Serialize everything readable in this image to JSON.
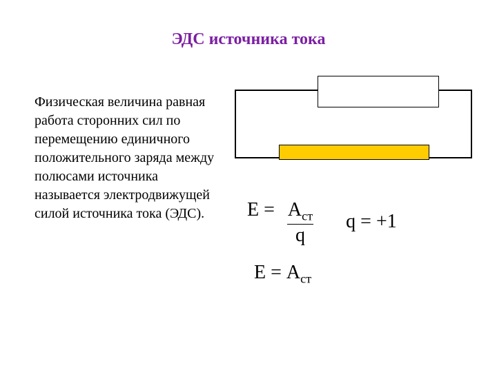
{
  "title": {
    "text": "ЭДС источника тока",
    "color": "#7b1fa2",
    "fontsize": 24
  },
  "body": {
    "text": "Физическая величина равная работа сторонних сил по перемещению единичного положительного заряда между полюсами источника называется электродвижущей силой источника тока (ЭДС).",
    "color": "#000000",
    "fontsize": 20
  },
  "diagram": {
    "outer_border_color": "#000000",
    "outer_fill": "#ffffff",
    "top_box_fill": "#ffffff",
    "top_box_border": "#000000",
    "bottom_bar_fill": "#ffcc00",
    "bottom_bar_border": "#000000"
  },
  "formulas": {
    "fontsize": 28,
    "color": "#000000",
    "eq1": {
      "lhs": "Е",
      "eq": "=",
      "num": "А",
      "num_sub": "ст",
      "den": "q"
    },
    "eq2": {
      "lhs": "q",
      "eq": "=",
      "rhs": "+1"
    },
    "eq3": {
      "lhs": "Е",
      "eq": "=",
      "rhs": "А",
      "rhs_sub": "ст"
    }
  }
}
